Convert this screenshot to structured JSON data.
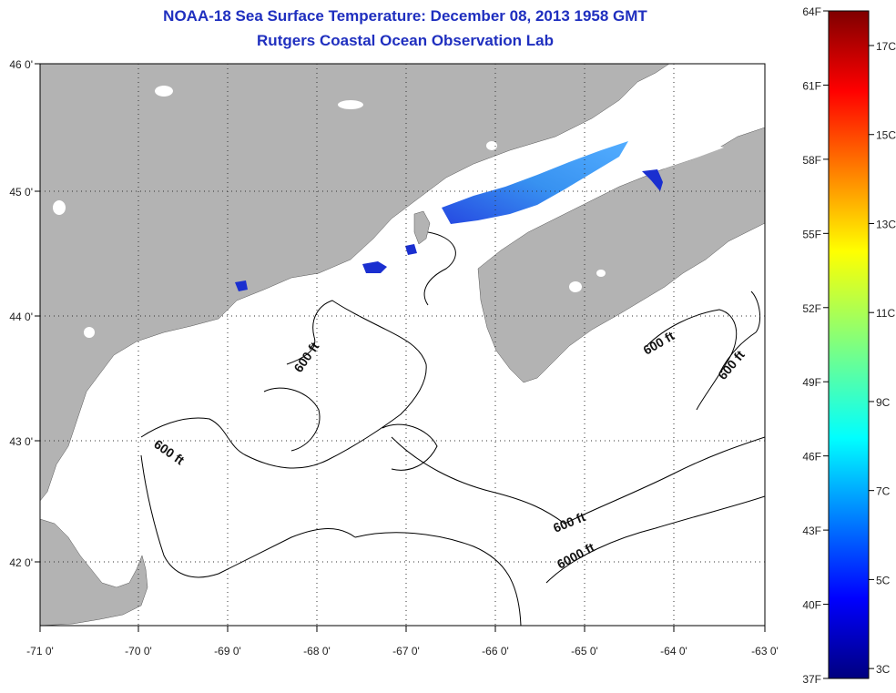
{
  "header": {
    "title": "NOAA-18 Sea Surface Temperature:  December 08, 2013 1958 GMT",
    "subtitle": "Rutgers Coastal Ocean Observation Lab"
  },
  "map": {
    "lon_ticks": [
      "-71 0'",
      "-70 0'",
      "-69 0'",
      "-68 0'",
      "-67 0'",
      "-66 0'",
      "-65 0'",
      "-64 0'",
      "-63 0'"
    ],
    "lat_ticks": [
      "46 0'",
      "45 0'",
      "44 0'",
      "43 0'",
      "42 0'"
    ],
    "lon_range": [
      -71,
      -63
    ],
    "lat_range": [
      41.5,
      46
    ],
    "colors": {
      "land": "#b3b3b3",
      "water_nodata": "#ffffff",
      "contour": "#000000"
    },
    "contour_labels": [
      "600 ft",
      "600 ft",
      "600 ft",
      "600 ft",
      "600 ft",
      "6000 ft"
    ]
  },
  "colorbar": {
    "f_labels": [
      "64F",
      "61F",
      "58F",
      "55F",
      "52F",
      "49F",
      "46F",
      "43F",
      "40F",
      "37F"
    ],
    "c_labels": [
      "17C",
      "15C",
      "13C",
      "11C",
      "9C",
      "7C",
      "5C",
      "3C"
    ],
    "range_f": [
      37,
      64
    ],
    "range_c": [
      3,
      17.8
    ]
  }
}
